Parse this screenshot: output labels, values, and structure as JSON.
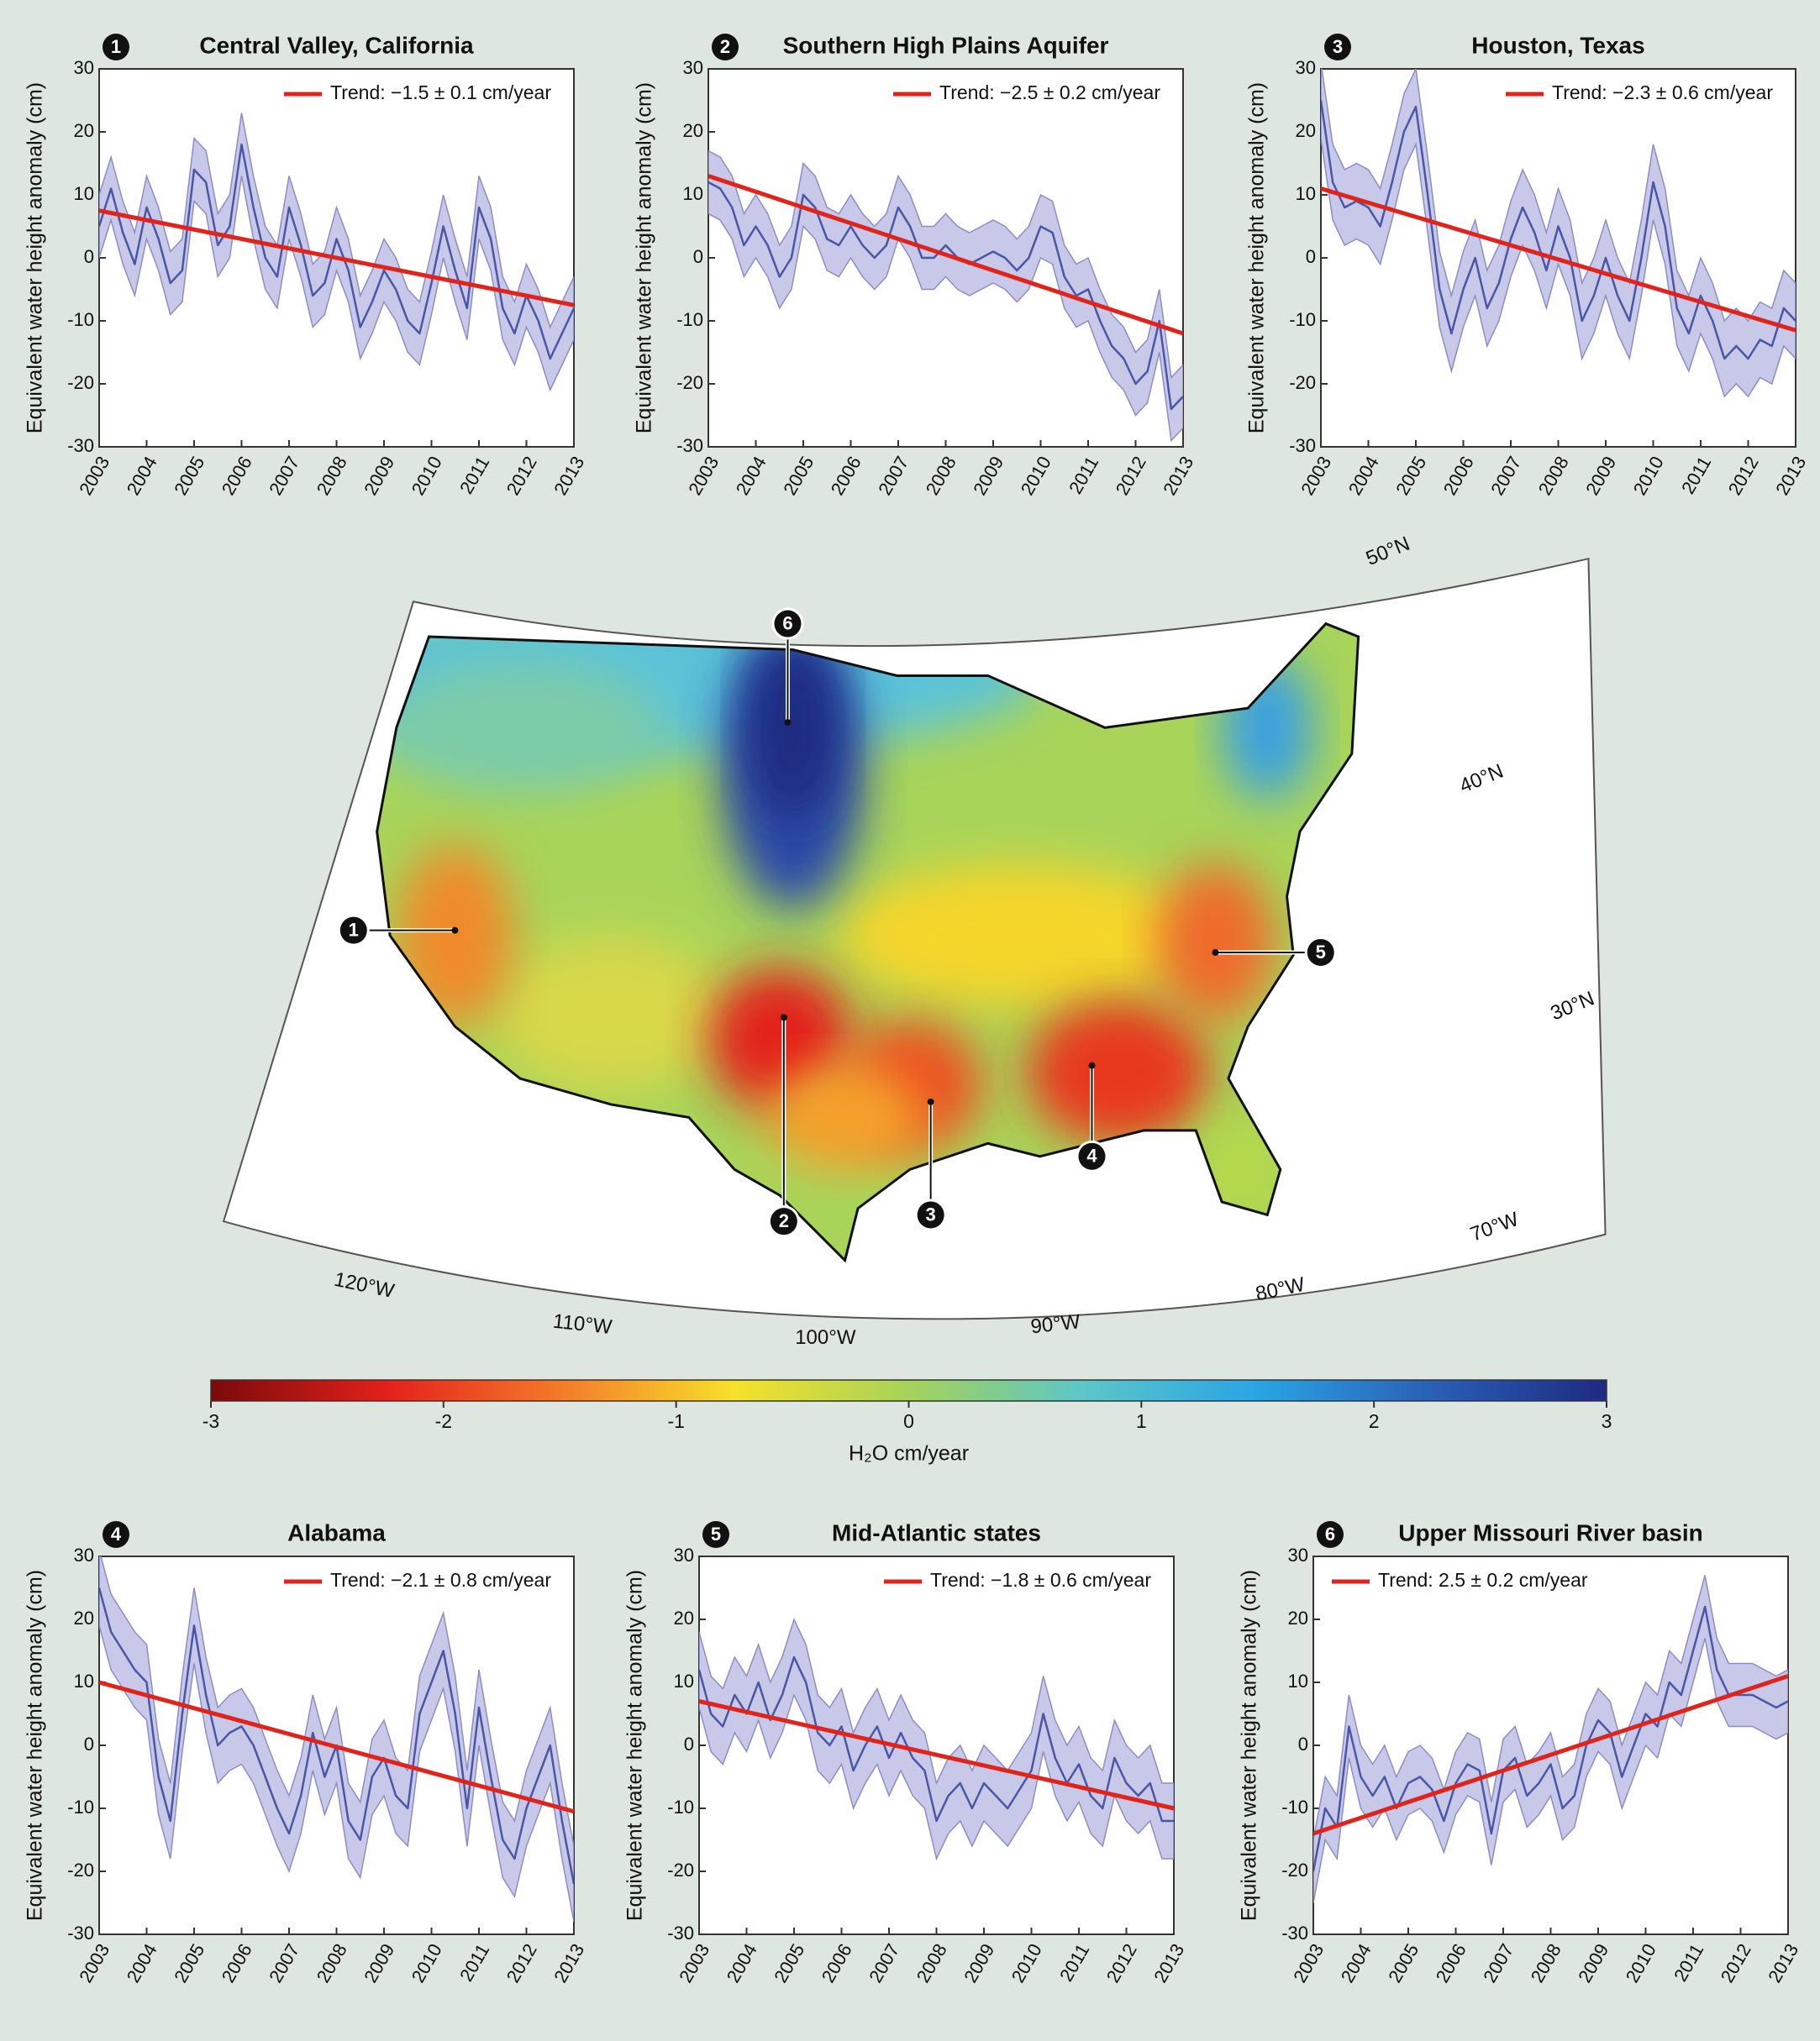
{
  "chart_data": [
    {
      "type": "line",
      "badge": "1",
      "title": "Central Valley, California",
      "ylabel": "Equivalent water height anomaly (cm)",
      "legend": "upper right",
      "xlim": [
        2003,
        2013
      ],
      "ylim": [
        -30,
        30
      ],
      "xticks": [
        2003,
        2004,
        2005,
        2006,
        2007,
        2008,
        2009,
        2010,
        2011,
        2012,
        2013
      ],
      "yticks": [
        -30,
        -20,
        -10,
        0,
        10,
        20,
        30
      ],
      "x": [
        2003,
        2003.25,
        2003.5,
        2003.75,
        2004,
        2004.25,
        2004.5,
        2004.75,
        2005,
        2005.25,
        2005.5,
        2005.75,
        2006,
        2006.25,
        2006.5,
        2006.75,
        2007,
        2007.25,
        2007.5,
        2007.75,
        2008,
        2008.25,
        2008.5,
        2008.75,
        2009,
        2009.25,
        2009.5,
        2009.75,
        2010,
        2010.25,
        2010.5,
        2010.75,
        2011,
        2011.25,
        2011.5,
        2011.75,
        2012,
        2012.25,
        2012.5,
        2012.75,
        2013
      ],
      "series": [
        {
          "color": "#4a56a6",
          "band_color": "#c8c8e8",
          "error": 5,
          "values": [
            5,
            11,
            4,
            -1,
            8,
            3,
            -4,
            -2,
            14,
            12,
            2,
            5,
            18,
            8,
            0,
            -3,
            8,
            2,
            -6,
            -4,
            3,
            -2,
            -11,
            -7,
            -2,
            -5,
            -10,
            -12,
            -4,
            5,
            -2,
            -8,
            8,
            3,
            -8,
            -12,
            -6,
            -10,
            -16,
            -12,
            -8
          ]
        },
        {
          "name": "Trend: −1.5 ± 0.1 cm/year",
          "color": "#e0241c",
          "x": [
            2003,
            2013
          ],
          "values": [
            7.5,
            -7.5
          ]
        }
      ]
    },
    {
      "type": "line",
      "badge": "2",
      "title": "Southern High Plains Aquifer",
      "ylabel": "Equivalent water height anomaly (cm)",
      "legend": "upper right",
      "xlim": [
        2003,
        2013
      ],
      "ylim": [
        -30,
        30
      ],
      "xticks": [
        2003,
        2004,
        2005,
        2006,
        2007,
        2008,
        2009,
        2010,
        2011,
        2012,
        2013
      ],
      "yticks": [
        -30,
        -20,
        -10,
        0,
        10,
        20,
        30
      ],
      "x": [
        2003,
        2003.25,
        2003.5,
        2003.75,
        2004,
        2004.25,
        2004.5,
        2004.75,
        2005,
        2005.25,
        2005.5,
        2005.75,
        2006,
        2006.25,
        2006.5,
        2006.75,
        2007,
        2007.25,
        2007.5,
        2007.75,
        2008,
        2008.25,
        2008.5,
        2008.75,
        2009,
        2009.25,
        2009.5,
        2009.75,
        2010,
        2010.25,
        2010.5,
        2010.75,
        2011,
        2011.25,
        2011.5,
        2011.75,
        2012,
        2012.25,
        2012.5,
        2012.75,
        2013
      ],
      "series": [
        {
          "color": "#4a56a6",
          "band_color": "#c8c8e8",
          "error": 5,
          "values": [
            12,
            11,
            8,
            2,
            5,
            2,
            -3,
            0,
            10,
            8,
            3,
            2,
            5,
            2,
            0,
            2,
            8,
            5,
            0,
            0,
            2,
            0,
            -1,
            0,
            1,
            0,
            -2,
            0,
            5,
            4,
            -3,
            -6,
            -5,
            -10,
            -14,
            -16,
            -20,
            -18,
            -10,
            -24,
            -22
          ]
        },
        {
          "name": "Trend: −2.5 ± 0.2 cm/year",
          "color": "#e0241c",
          "x": [
            2003,
            2013
          ],
          "values": [
            13,
            -12
          ]
        }
      ]
    },
    {
      "type": "line",
      "badge": "3",
      "title": "Houston, Texas",
      "ylabel": "Equivalent water height anomaly (cm)",
      "legend": "upper right",
      "xlim": [
        2003,
        2013
      ],
      "ylim": [
        -30,
        30
      ],
      "xticks": [
        2003,
        2004,
        2005,
        2006,
        2007,
        2008,
        2009,
        2010,
        2011,
        2012,
        2013
      ],
      "yticks": [
        -30,
        -20,
        -10,
        0,
        10,
        20,
        30
      ],
      "x": [
        2003,
        2003.25,
        2003.5,
        2003.75,
        2004,
        2004.25,
        2004.5,
        2004.75,
        2005,
        2005.25,
        2005.5,
        2005.75,
        2006,
        2006.25,
        2006.5,
        2006.75,
        2007,
        2007.25,
        2007.5,
        2007.75,
        2008,
        2008.25,
        2008.5,
        2008.75,
        2009,
        2009.25,
        2009.5,
        2009.75,
        2010,
        2010.25,
        2010.5,
        2010.75,
        2011,
        2011.25,
        2011.5,
        2011.75,
        2012,
        2012.25,
        2012.5,
        2012.75,
        2013
      ],
      "series": [
        {
          "color": "#4a56a6",
          "band_color": "#c8c8e8",
          "error": 6,
          "values": [
            25,
            12,
            8,
            9,
            8,
            5,
            12,
            20,
            24,
            10,
            -5,
            -12,
            -5,
            0,
            -8,
            -4,
            3,
            8,
            4,
            -2,
            5,
            0,
            -10,
            -6,
            0,
            -6,
            -10,
            0,
            12,
            5,
            -8,
            -12,
            -6,
            -10,
            -16,
            -14,
            -16,
            -13,
            -14,
            -8,
            -10
          ]
        },
        {
          "name": "Trend: −2.3 ± 0.6 cm/year",
          "color": "#e0241c",
          "x": [
            2003,
            2013
          ],
          "values": [
            11,
            -11.5
          ]
        }
      ]
    },
    {
      "type": "line",
      "badge": "4",
      "title": "Alabama",
      "ylabel": "Equivalent water height anomaly (cm)",
      "legend": "upper right",
      "xlim": [
        2003,
        2013
      ],
      "ylim": [
        -30,
        30
      ],
      "xticks": [
        2003,
        2004,
        2005,
        2006,
        2007,
        2008,
        2009,
        2010,
        2011,
        2012,
        2013
      ],
      "yticks": [
        -30,
        -20,
        -10,
        0,
        10,
        20,
        30
      ],
      "x": [
        2003,
        2003.25,
        2003.5,
        2003.75,
        2004,
        2004.25,
        2004.5,
        2004.75,
        2005,
        2005.25,
        2005.5,
        2005.75,
        2006,
        2006.25,
        2006.5,
        2006.75,
        2007,
        2007.25,
        2007.5,
        2007.75,
        2008,
        2008.25,
        2008.5,
        2008.75,
        2009,
        2009.25,
        2009.5,
        2009.75,
        2010,
        2010.25,
        2010.5,
        2010.75,
        2011,
        2011.25,
        2011.5,
        2011.75,
        2012,
        2012.25,
        2012.5,
        2012.75,
        2013
      ],
      "series": [
        {
          "color": "#4a56a6",
          "band_color": "#c8c8e8",
          "error": 6,
          "values": [
            25,
            18,
            15,
            12,
            10,
            -5,
            -12,
            5,
            19,
            8,
            0,
            2,
            3,
            0,
            -5,
            -10,
            -14,
            -8,
            2,
            -5,
            0,
            -12,
            -15,
            -5,
            -2,
            -8,
            -10,
            5,
            10,
            15,
            5,
            -10,
            6,
            -5,
            -15,
            -18,
            -10,
            -5,
            0,
            -12,
            -22
          ]
        },
        {
          "name": "Trend: −2.1 ± 0.8 cm/year",
          "color": "#e0241c",
          "x": [
            2003,
            2013
          ],
          "values": [
            10,
            -10.5
          ]
        }
      ]
    },
    {
      "type": "line",
      "badge": "5",
      "title": "Mid-Atlantic states",
      "ylabel": "Equivalent water height anomaly (cm)",
      "legend": "upper right",
      "xlim": [
        2003,
        2013
      ],
      "ylim": [
        -30,
        30
      ],
      "xticks": [
        2003,
        2004,
        2005,
        2006,
        2007,
        2008,
        2009,
        2010,
        2011,
        2012,
        2013
      ],
      "yticks": [
        -30,
        -20,
        -10,
        0,
        10,
        20,
        30
      ],
      "x": [
        2003,
        2003.25,
        2003.5,
        2003.75,
        2004,
        2004.25,
        2004.5,
        2004.75,
        2005,
        2005.25,
        2005.5,
        2005.75,
        2006,
        2006.25,
        2006.5,
        2006.75,
        2007,
        2007.25,
        2007.5,
        2007.75,
        2008,
        2008.25,
        2008.5,
        2008.75,
        2009,
        2009.25,
        2009.5,
        2009.75,
        2010,
        2010.25,
        2010.5,
        2010.75,
        2011,
        2011.25,
        2011.5,
        2011.75,
        2012,
        2012.25,
        2012.5,
        2012.75,
        2013
      ],
      "series": [
        {
          "color": "#4a56a6",
          "band_color": "#c8c8e8",
          "error": 6,
          "values": [
            12,
            5,
            3,
            8,
            5,
            10,
            4,
            8,
            14,
            10,
            2,
            0,
            3,
            -4,
            0,
            3,
            -2,
            2,
            -2,
            -4,
            -12,
            -8,
            -6,
            -10,
            -6,
            -8,
            -10,
            -7,
            -4,
            5,
            -2,
            -6,
            -3,
            -8,
            -10,
            -2,
            -6,
            -8,
            -6,
            -12,
            -12
          ]
        },
        {
          "name": "Trend: −1.8 ± 0.6 cm/year",
          "color": "#e0241c",
          "x": [
            2003,
            2013
          ],
          "values": [
            7,
            -10
          ]
        }
      ]
    },
    {
      "type": "line",
      "badge": "6",
      "title": "Upper Missouri River basin",
      "ylabel": "Equivalent water height anomaly (cm)",
      "legend": "upper left",
      "xlim": [
        2003,
        2013
      ],
      "ylim": [
        -30,
        30
      ],
      "xticks": [
        2003,
        2004,
        2005,
        2006,
        2007,
        2008,
        2009,
        2010,
        2011,
        2012,
        2013
      ],
      "yticks": [
        -30,
        -20,
        -10,
        0,
        10,
        20,
        30
      ],
      "x": [
        2003,
        2003.25,
        2003.5,
        2003.75,
        2004,
        2004.25,
        2004.5,
        2004.75,
        2005,
        2005.25,
        2005.5,
        2005.75,
        2006,
        2006.25,
        2006.5,
        2006.75,
        2007,
        2007.25,
        2007.5,
        2007.75,
        2008,
        2008.25,
        2008.5,
        2008.75,
        2009,
        2009.25,
        2009.5,
        2009.75,
        2010,
        2010.25,
        2010.5,
        2010.75,
        2011,
        2011.25,
        2011.5,
        2011.75,
        2012,
        2012.25,
        2012.5,
        2012.75,
        2013
      ],
      "series": [
        {
          "color": "#4a56a6",
          "band_color": "#c8c8e8",
          "error": 5,
          "values": [
            -20,
            -10,
            -13,
            3,
            -5,
            -8,
            -5,
            -10,
            -6,
            -5,
            -7,
            -12,
            -6,
            -3,
            -4,
            -14,
            -4,
            -2,
            -8,
            -6,
            -3,
            -10,
            -8,
            0,
            4,
            2,
            -5,
            0,
            5,
            3,
            10,
            8,
            15,
            22,
            12,
            8,
            8,
            8,
            7,
            6,
            7
          ]
        },
        {
          "name": "Trend: 2.5 ± 0.2 cm/year",
          "color": "#e0241c",
          "x": [
            2003,
            2013
          ],
          "values": [
            -14,
            11
          ]
        }
      ]
    },
    {
      "type": "colorbar",
      "label": "H₂O cm/year",
      "xlim": [
        -3,
        3
      ],
      "xticks": [
        -3,
        -2,
        -1,
        0,
        1,
        2,
        3
      ],
      "colors": [
        "#7a0a0a",
        "#e3201b",
        "#f47a2a",
        "#f7e12a",
        "#a6d25a",
        "#5cc6c8",
        "#2aa4e6",
        "#2a5fb8",
        "#1e2a80"
      ]
    }
  ],
  "map": {
    "lat_labels": [
      "50°N",
      "40°N",
      "30°N"
    ],
    "lon_labels": [
      "120°W",
      "110°W",
      "100°W",
      "90°W",
      "80°W",
      "70°W"
    ],
    "markers": [
      "1",
      "2",
      "3",
      "4",
      "5",
      "6"
    ]
  }
}
